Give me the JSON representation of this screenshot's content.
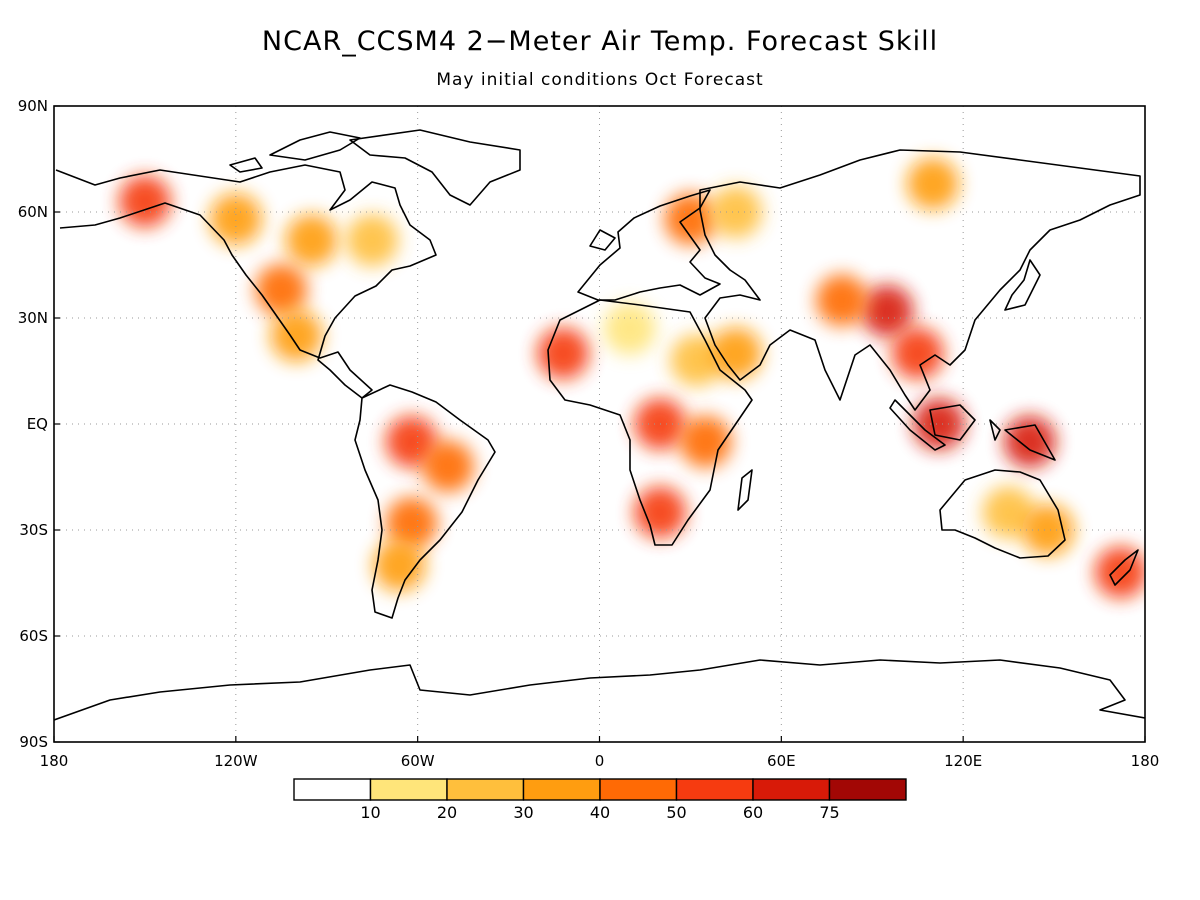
{
  "title": "NCAR_CCSM4 2−Meter Air Temp. Forecast Skill",
  "subtitle": "May initial conditions  Oct Forecast",
  "map": {
    "lon_range": [
      -180,
      180
    ],
    "lat_range": [
      -90,
      90
    ],
    "grid": "dotted",
    "lon_ticks": [
      {
        "value": -180,
        "label": "180"
      },
      {
        "value": -120,
        "label": "120W"
      },
      {
        "value": -60,
        "label": "60W"
      },
      {
        "value": 0,
        "label": "0"
      },
      {
        "value": 60,
        "label": "60E"
      },
      {
        "value": 120,
        "label": "120E"
      },
      {
        "value": 180,
        "label": "180"
      }
    ],
    "lat_ticks": [
      {
        "value": 90,
        "label": "90N"
      },
      {
        "value": 60,
        "label": "60N"
      },
      {
        "value": 30,
        "label": "30N"
      },
      {
        "value": 0,
        "label": "EQ"
      },
      {
        "value": -30,
        "label": "30S"
      },
      {
        "value": -60,
        "label": "60S"
      },
      {
        "value": -90,
        "label": "90S"
      }
    ]
  },
  "colorbar": {
    "colors": [
      "#ffffff",
      "#ffe57a",
      "#ffbf3c",
      "#ff9d10",
      "#ff6a05",
      "#f63b10",
      "#d81a08",
      "#a20705"
    ],
    "labels": [
      "10",
      "20",
      "30",
      "40",
      "50",
      "60",
      "75"
    ]
  },
  "skill_regions": [
    {
      "lon": -150,
      "lat": 63,
      "level": 5
    },
    {
      "lon": -120,
      "lat": 58,
      "level": 3
    },
    {
      "lon": -95,
      "lat": 52,
      "level": 3
    },
    {
      "lon": -75,
      "lat": 52,
      "level": 2
    },
    {
      "lon": -105,
      "lat": 38,
      "level": 4
    },
    {
      "lon": -100,
      "lat": 25,
      "level": 3
    },
    {
      "lon": -62,
      "lat": -5,
      "level": 5
    },
    {
      "lon": -50,
      "lat": -12,
      "level": 4
    },
    {
      "lon": -62,
      "lat": -28,
      "level": 4
    },
    {
      "lon": -66,
      "lat": -40,
      "level": 3
    },
    {
      "lon": -12,
      "lat": 20,
      "level": 5
    },
    {
      "lon": 10,
      "lat": 27,
      "level": 1
    },
    {
      "lon": 32,
      "lat": 18,
      "level": 2
    },
    {
      "lon": 20,
      "lat": 0,
      "level": 5
    },
    {
      "lon": 35,
      "lat": -5,
      "level": 4
    },
    {
      "lon": 20,
      "lat": -25,
      "level": 5
    },
    {
      "lon": 45,
      "lat": 20,
      "level": 3
    },
    {
      "lon": 30,
      "lat": 58,
      "level": 4
    },
    {
      "lon": 45,
      "lat": 60,
      "level": 2
    },
    {
      "lon": 110,
      "lat": 68,
      "level": 3
    },
    {
      "lon": 95,
      "lat": 32,
      "level": 6
    },
    {
      "lon": 80,
      "lat": 35,
      "level": 4
    },
    {
      "lon": 105,
      "lat": 20,
      "level": 5
    },
    {
      "lon": 112,
      "lat": 0,
      "level": 6
    },
    {
      "lon": 142,
      "lat": -5,
      "level": 6
    },
    {
      "lon": 135,
      "lat": -25,
      "level": 2
    },
    {
      "lon": 148,
      "lat": -30,
      "level": 3
    },
    {
      "lon": 172,
      "lat": -42,
      "level": 5
    }
  ]
}
